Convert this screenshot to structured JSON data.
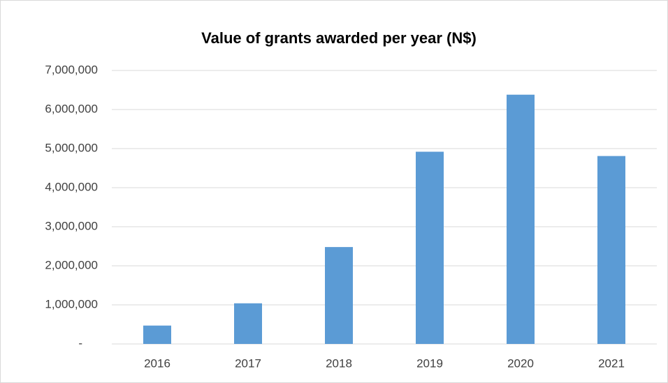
{
  "chart_data": {
    "type": "bar",
    "title": "Value of grants awarded per year (N$)",
    "categories": [
      "2016",
      "2017",
      "2018",
      "2019",
      "2020",
      "2021"
    ],
    "values": [
      470000,
      1040000,
      2480000,
      4920000,
      6380000,
      4810000
    ],
    "color": "#5b9bd5",
    "ylim": [
      0,
      7000000
    ],
    "yticks": [
      {
        "value": 0,
        "label": "-"
      },
      {
        "value": 1000000,
        "label": "1,000,000"
      },
      {
        "value": 2000000,
        "label": "2,000,000"
      },
      {
        "value": 3000000,
        "label": "3,000,000"
      },
      {
        "value": 4000000,
        "label": "4,000,000"
      },
      {
        "value": 5000000,
        "label": "5,000,000"
      },
      {
        "value": 6000000,
        "label": "6,000,000"
      },
      {
        "value": 7000000,
        "label": "7,000,000"
      }
    ],
    "grid": true
  }
}
